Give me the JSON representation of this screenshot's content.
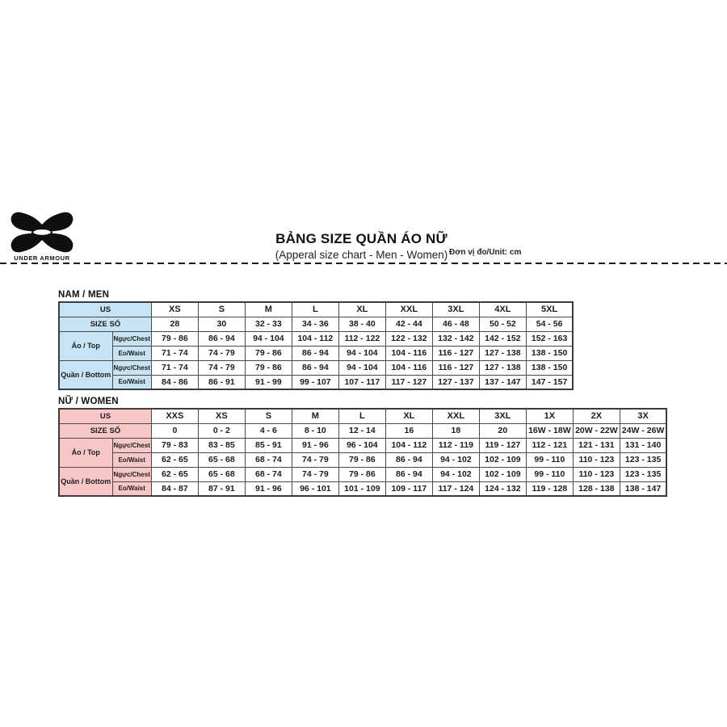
{
  "brand": {
    "wordmark": "UNDER ARMOUR"
  },
  "header": {
    "title": "BẢNG SIZE QUẦN ÁO NỮ",
    "subtitle": "(Apperal size chart - Men - Women)",
    "unit_label": "Đơn vị đo/Unit: cm"
  },
  "colors": {
    "men_header_bg": "#c6e4f4",
    "women_header_bg": "#f8c8c8",
    "border": "#4a4a4a",
    "text": "#1c1c1c"
  },
  "men_table": {
    "section_title": "NAM / MEN",
    "us_label": "US",
    "size_label": "SIZE SỐ",
    "sizes": [
      "XS",
      "S",
      "M",
      "L",
      "XL",
      "XXL",
      "3XL",
      "4XL",
      "5XL"
    ],
    "size_numbers": [
      "28",
      "30",
      "32 - 33",
      "34 - 36",
      "38 - 40",
      "42 - 44",
      "46 - 48",
      "50 - 52",
      "54 - 56"
    ],
    "groups": [
      {
        "label": "Áo / Top",
        "rows": [
          {
            "label": "Ngực/Chest",
            "values": [
              "79 - 86",
              "86 - 94",
              "94 - 104",
              "104 - 112",
              "112 - 122",
              "122 - 132",
              "132 - 142",
              "142 - 152",
              "152 - 163"
            ]
          },
          {
            "label": "Eo/Waist",
            "values": [
              "71 - 74",
              "74 - 79",
              "79 - 86",
              "86 - 94",
              "94 - 104",
              "104 - 116",
              "116 - 127",
              "127 - 138",
              "138 - 150"
            ]
          }
        ]
      },
      {
        "label": "Quần / Bottom",
        "rows": [
          {
            "label": "Ngực/Chest",
            "values": [
              "71 - 74",
              "74 - 79",
              "79 - 86",
              "86 - 94",
              "94 - 104",
              "104 - 116",
              "116 - 127",
              "127 - 138",
              "138 - 150"
            ]
          },
          {
            "label": "Eo/Waist",
            "values": [
              "84 - 86",
              "86 - 91",
              "91 - 99",
              "99 - 107",
              "107 - 117",
              "117 - 127",
              "127 - 137",
              "137 - 147",
              "147 - 157"
            ]
          }
        ]
      }
    ]
  },
  "women_table": {
    "section_title": "NỮ / WOMEN",
    "us_label": "US",
    "size_label": "SIZE SỐ",
    "sizes": [
      "XXS",
      "XS",
      "S",
      "M",
      "L",
      "XL",
      "XXL",
      "3XL",
      "1X",
      "2X",
      "3X"
    ],
    "size_numbers": [
      "0",
      "0 - 2",
      "4 - 6",
      "8 - 10",
      "12 - 14",
      "16",
      "18",
      "20",
      "16W - 18W",
      "20W - 22W",
      "24W - 26W"
    ],
    "groups": [
      {
        "label": "Áo / Top",
        "rows": [
          {
            "label": "Ngực/Chest",
            "values": [
              "79 - 83",
              "83 - 85",
              "85 - 91",
              "91 - 96",
              "96 - 104",
              "104 - 112",
              "112 - 119",
              "119 - 127",
              "112 - 121",
              "121 - 131",
              "131 - 140"
            ]
          },
          {
            "label": "Eo/Waist",
            "values": [
              "62 - 65",
              "65 - 68",
              "68 - 74",
              "74 - 79",
              "79 - 86",
              "86 - 94",
              "94 - 102",
              "102 - 109",
              "99 - 110",
              "110 - 123",
              "123 - 135"
            ]
          }
        ]
      },
      {
        "label": "Quần / Bottom",
        "rows": [
          {
            "label": "Ngực/Chest",
            "values": [
              "62 - 65",
              "65 - 68",
              "68 - 74",
              "74 - 79",
              "79 - 86",
              "86 - 94",
              "94 - 102",
              "102 - 109",
              "99 - 110",
              "110 - 123",
              "123 - 135"
            ]
          },
          {
            "label": "Eo/Waist",
            "values": [
              "84 - 87",
              "87 - 91",
              "91 - 96",
              "96 - 101",
              "101 - 109",
              "109 - 117",
              "117 - 124",
              "124 - 132",
              "119 - 128",
              "128 - 138",
              "138 - 147"
            ]
          }
        ]
      }
    ]
  }
}
